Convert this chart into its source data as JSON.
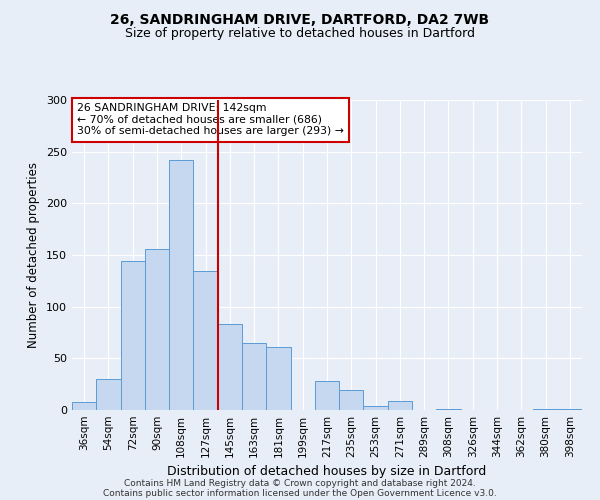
{
  "title1": "26, SANDRINGHAM DRIVE, DARTFORD, DA2 7WB",
  "title2": "Size of property relative to detached houses in Dartford",
  "xlabel": "Distribution of detached houses by size in Dartford",
  "ylabel": "Number of detached properties",
  "bin_labels": [
    "36sqm",
    "54sqm",
    "72sqm",
    "90sqm",
    "108sqm",
    "127sqm",
    "145sqm",
    "163sqm",
    "181sqm",
    "199sqm",
    "217sqm",
    "235sqm",
    "253sqm",
    "271sqm",
    "289sqm",
    "308sqm",
    "326sqm",
    "344sqm",
    "362sqm",
    "380sqm",
    "398sqm"
  ],
  "bar_values": [
    8,
    30,
    144,
    156,
    242,
    135,
    83,
    65,
    61,
    0,
    28,
    19,
    4,
    9,
    0,
    1,
    0,
    0,
    0,
    1,
    1
  ],
  "bar_color": "#c5d8f0",
  "bar_edge_color": "#5b9bd5",
  "vline_color": "#cc0000",
  "vline_x": 5.5,
  "annotation_text": "26 SANDRINGHAM DRIVE: 142sqm\n← 70% of detached houses are smaller (686)\n30% of semi-detached houses are larger (293) →",
  "annotation_box_color": "#ffffff",
  "annotation_box_edge_color": "#cc0000",
  "ylim": [
    0,
    300
  ],
  "yticks": [
    0,
    50,
    100,
    150,
    200,
    250,
    300
  ],
  "background_color": "#e8eef7",
  "grid_color": "#ffffff",
  "footer1": "Contains HM Land Registry data © Crown copyright and database right 2024.",
  "footer2": "Contains public sector information licensed under the Open Government Licence v3.0."
}
